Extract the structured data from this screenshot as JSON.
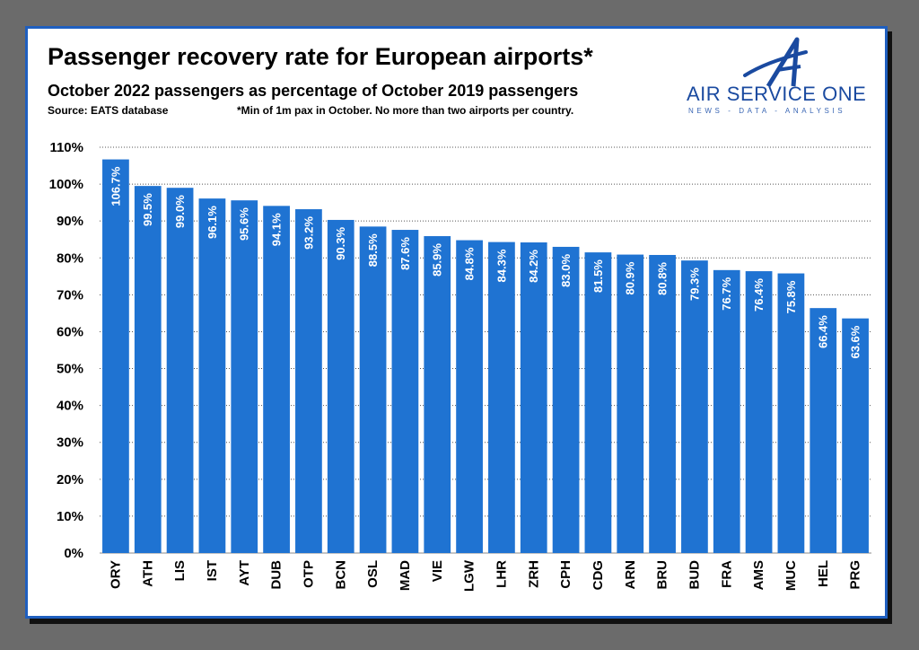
{
  "header": {
    "title": "Passenger recovery rate for European airports*",
    "subtitle": "October 2022 passengers as percentage of October 2019 passengers",
    "source": "Source: EATS database",
    "note": "*Min of 1m pax in October. No more than two airports per country."
  },
  "logo": {
    "name": "AIR SERVICE ONE",
    "tagline": "NEWS - DATA - ANALYSIS",
    "icon": "air-service-one-logo-icon"
  },
  "colors": {
    "bar": "#1f73d2",
    "frame_border": "#1f5fbf",
    "background": "#6b6b6b",
    "label_text": "#ffffff"
  },
  "chart_data": {
    "type": "bar",
    "categories": [
      "ORY",
      "ATH",
      "LIS",
      "IST",
      "AYT",
      "DUB",
      "OTP",
      "BCN",
      "OSL",
      "MAD",
      "VIE",
      "LGW",
      "LHR",
      "ZRH",
      "CPH",
      "CDG",
      "ARN",
      "BRU",
      "BUD",
      "FRA",
      "AMS",
      "MUC",
      "HEL",
      "PRG"
    ],
    "values": [
      106.7,
      99.5,
      99.0,
      96.1,
      95.6,
      94.1,
      93.2,
      90.3,
      88.5,
      87.6,
      85.9,
      84.8,
      84.3,
      84.2,
      83.0,
      81.5,
      80.9,
      80.8,
      79.3,
      76.7,
      76.4,
      75.8,
      66.4,
      63.6
    ],
    "labels": [
      "106.7%",
      "99.5%",
      "99.0%",
      "96.1%",
      "95.6%",
      "94.1%",
      "93.2%",
      "90.3%",
      "88.5%",
      "87.6%",
      "85.9%",
      "84.8%",
      "84.3%",
      "84.2%",
      "83.0%",
      "81.5%",
      "80.9%",
      "80.8%",
      "79.3%",
      "76.7%",
      "76.4%",
      "75.8%",
      "66.4%",
      "63.6%"
    ],
    "yticks": [
      "0%",
      "10%",
      "20%",
      "30%",
      "40%",
      "50%",
      "60%",
      "70%",
      "80%",
      "90%",
      "100%",
      "110%"
    ],
    "ylim": [
      0,
      110
    ],
    "grid": true,
    "grid_style": "dotted",
    "label_orientation": "vertical",
    "title": "Passenger recovery rate for European airports*",
    "xlabel": "",
    "ylabel": ""
  }
}
